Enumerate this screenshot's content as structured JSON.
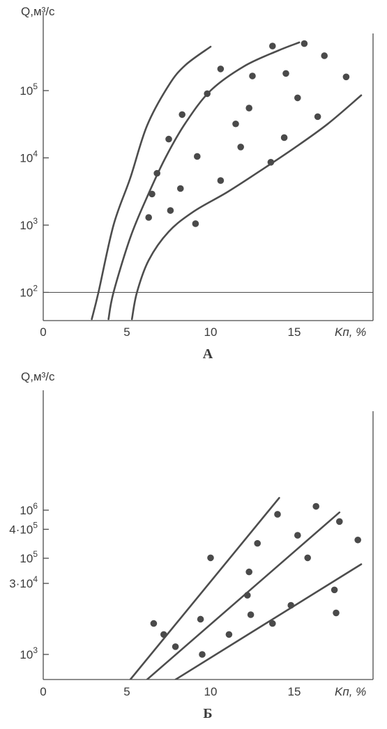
{
  "chart_data": [
    {
      "type": "scatter",
      "panel_label": "А",
      "ylabel": "Q,м³/с",
      "xlabel": "Kп, %",
      "xlim": [
        0,
        19
      ],
      "ylim": [
        40,
        1000000
      ],
      "yscale": "log",
      "x_ticks": [
        "0",
        "5",
        "10",
        "15"
      ],
      "y_ticks": [
        {
          "value": 100,
          "base": "10",
          "exp": "2"
        },
        {
          "value": 1000,
          "base": "10",
          "exp": "3"
        },
        {
          "value": 10000,
          "base": "10",
          "exp": "4"
        },
        {
          "value": 100000,
          "base": "10",
          "exp": "5"
        }
      ],
      "reference_line_y": 100,
      "points": [
        {
          "x": 6.3,
          "y": 1300
        },
        {
          "x": 6.5,
          "y": 2900
        },
        {
          "x": 6.8,
          "y": 5900
        },
        {
          "x": 7.6,
          "y": 1650
        },
        {
          "x": 7.5,
          "y": 19000
        },
        {
          "x": 8.2,
          "y": 3500
        },
        {
          "x": 8.3,
          "y": 44000
        },
        {
          "x": 9.1,
          "y": 1050
        },
        {
          "x": 9.2,
          "y": 10500
        },
        {
          "x": 9.8,
          "y": 90000
        },
        {
          "x": 10.6,
          "y": 4600
        },
        {
          "x": 10.6,
          "y": 210000
        },
        {
          "x": 11.5,
          "y": 32000
        },
        {
          "x": 11.8,
          "y": 14500
        },
        {
          "x": 12.3,
          "y": 55000
        },
        {
          "x": 12.5,
          "y": 165000
        },
        {
          "x": 13.6,
          "y": 8600
        },
        {
          "x": 13.7,
          "y": 460000
        },
        {
          "x": 14.4,
          "y": 20000
        },
        {
          "x": 14.5,
          "y": 180000
        },
        {
          "x": 15.2,
          "y": 78000
        },
        {
          "x": 15.6,
          "y": 500000
        },
        {
          "x": 16.4,
          "y": 41000
        },
        {
          "x": 16.8,
          "y": 330000
        },
        {
          "x": 18.1,
          "y": 160000
        }
      ],
      "curves": [
        [
          [
            2.9,
            40
          ],
          [
            3.3,
            100
          ],
          [
            4.2,
            1000
          ],
          [
            5.2,
            5000
          ],
          [
            6.2,
            30000
          ],
          [
            7.5,
            120000
          ],
          [
            8.5,
            240000
          ],
          [
            10.0,
            450000
          ]
        ],
        [
          [
            3.9,
            40
          ],
          [
            4.2,
            100
          ],
          [
            5.2,
            650
          ],
          [
            6.2,
            2600
          ],
          [
            7.3,
            10000
          ],
          [
            8.5,
            33000
          ],
          [
            10.0,
            100000
          ],
          [
            12.0,
            230000
          ],
          [
            14.0,
            390000
          ],
          [
            15.3,
            520000
          ]
        ],
        [
          [
            5.3,
            40
          ],
          [
            5.6,
            100
          ],
          [
            6.3,
            300
          ],
          [
            7.5,
            800
          ],
          [
            9.0,
            1600
          ],
          [
            11.0,
            3100
          ],
          [
            13.0,
            6500
          ],
          [
            15.0,
            14000
          ],
          [
            17.0,
            32000
          ],
          [
            19.0,
            85000
          ]
        ]
      ]
    },
    {
      "type": "scatter",
      "panel_label": "Б",
      "ylabel": "Q,м³/с",
      "xlabel": "Kп, %",
      "xlim": [
        0,
        19
      ],
      "ylim": [
        300,
        2000000
      ],
      "yscale": "log",
      "x_ticks": [
        "0",
        "5",
        "10",
        "15"
      ],
      "y_ticks": [
        {
          "value": 1000,
          "base": "10",
          "exp": "3"
        },
        {
          "value": 30000,
          "base": "3·10",
          "exp": "4"
        },
        {
          "value": 100000,
          "base": "10",
          "exp": "5"
        },
        {
          "value": 400000,
          "base": "4·10",
          "exp": "5"
        },
        {
          "value": 1000000,
          "base": "10",
          "exp": "6"
        }
      ],
      "points": [
        {
          "x": 6.6,
          "y": 4400
        },
        {
          "x": 7.2,
          "y": 2600
        },
        {
          "x": 7.9,
          "y": 1450
        },
        {
          "x": 9.4,
          "y": 5400
        },
        {
          "x": 9.5,
          "y": 1000
        },
        {
          "x": 10.0,
          "y": 102000
        },
        {
          "x": 11.1,
          "y": 2600
        },
        {
          "x": 12.3,
          "y": 52000
        },
        {
          "x": 12.2,
          "y": 17000
        },
        {
          "x": 12.4,
          "y": 6700
        },
        {
          "x": 12.8,
          "y": 204000
        },
        {
          "x": 13.7,
          "y": 4400
        },
        {
          "x": 14.0,
          "y": 820000
        },
        {
          "x": 14.8,
          "y": 10500
        },
        {
          "x": 15.2,
          "y": 300000
        },
        {
          "x": 15.8,
          "y": 102000
        },
        {
          "x": 16.3,
          "y": 1200000
        },
        {
          "x": 17.4,
          "y": 22000
        },
        {
          "x": 17.5,
          "y": 7300
        },
        {
          "x": 17.7,
          "y": 580000
        },
        {
          "x": 18.8,
          "y": 240000
        }
      ],
      "curves": [
        [
          [
            5.2,
            300
          ],
          [
            14.1,
            1800000
          ]
        ],
        [
          [
            6.2,
            300
          ],
          [
            17.7,
            900000
          ]
        ],
        [
          [
            7.9,
            300
          ],
          [
            19.0,
            75000
          ]
        ]
      ]
    }
  ]
}
